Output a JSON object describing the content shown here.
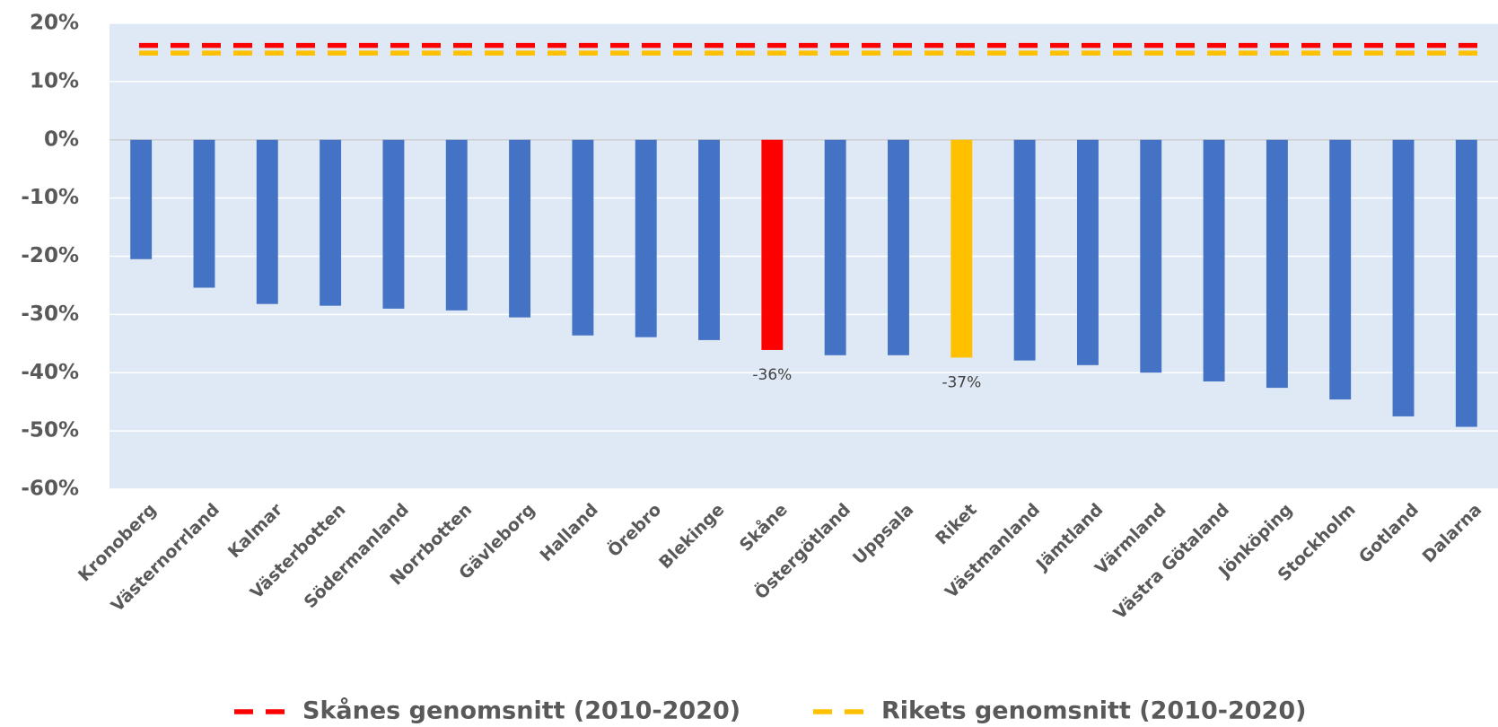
{
  "chart_data": {
    "type": "bar",
    "categories": [
      "Kronoberg",
      "Västernorrland",
      "Kalmar",
      "Västerbotten",
      "Södermanland",
      "Norrbotten",
      "Gävleborg",
      "Halland",
      "Örebro",
      "Blekinge",
      "Skåne",
      "Östergötland",
      "Uppsala",
      "Riket",
      "Västmanland",
      "Jämtland",
      "Värmland",
      "Västra Götaland",
      "Jönköping",
      "Stockholm",
      "Gotland",
      "Dalarna"
    ],
    "values": [
      -20.5,
      -25.4,
      -28.2,
      -28.5,
      -29.0,
      -29.3,
      -30.5,
      -33.6,
      -33.9,
      -34.4,
      -36.1,
      -37.0,
      -37.0,
      -37.4,
      -37.9,
      -38.7,
      -40.0,
      -41.5,
      -42.6,
      -44.6,
      -47.5,
      -49.3
    ],
    "value_labels": [
      null,
      null,
      null,
      null,
      null,
      null,
      null,
      null,
      null,
      null,
      "-36%",
      null,
      null,
      "-37%",
      null,
      null,
      null,
      null,
      null,
      null,
      null,
      null
    ],
    "colors": [
      "#4472c4",
      "#4472c4",
      "#4472c4",
      "#4472c4",
      "#4472c4",
      "#4472c4",
      "#4472c4",
      "#4472c4",
      "#4472c4",
      "#4472c4",
      "#ff0000",
      "#4472c4",
      "#4472c4",
      "#ffc000",
      "#4472c4",
      "#4472c4",
      "#4472c4",
      "#4472c4",
      "#4472c4",
      "#4472c4",
      "#4472c4",
      "#4472c4"
    ],
    "reference_lines": [
      {
        "name": "Skånes genomsnitt (2010-2020)",
        "value": 16.2,
        "color": "#ff0000"
      },
      {
        "name": "Rikets genomsnitt (2010-2020)",
        "value": 14.9,
        "color": "#ffc000"
      }
    ],
    "ylim": [
      -60,
      20
    ],
    "yticks": [
      {
        "value": -60,
        "label": "-60%"
      },
      {
        "value": -50,
        "label": "-50%"
      },
      {
        "value": -40,
        "label": "-40%"
      },
      {
        "value": -30,
        "label": "-30%"
      },
      {
        "value": -20,
        "label": "-20%"
      },
      {
        "value": -10,
        "label": "-10%"
      },
      {
        "value": 0,
        "label": "0%"
      },
      {
        "value": 10,
        "label": "10%"
      },
      {
        "value": 20,
        "label": "20%"
      }
    ],
    "grid": true,
    "legend": "bottom"
  }
}
